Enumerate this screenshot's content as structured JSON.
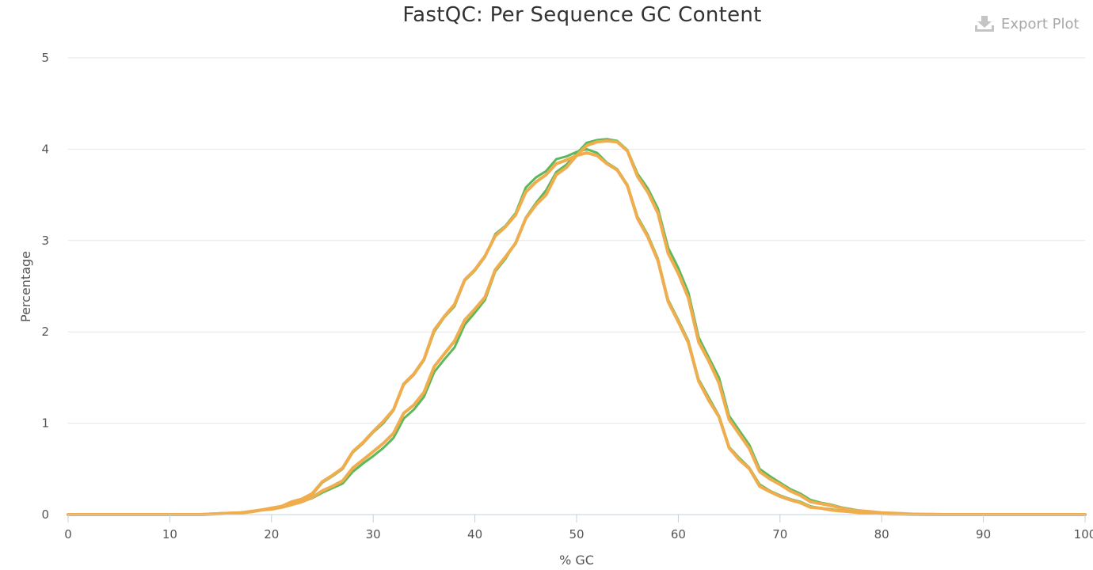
{
  "title": "FastQC: Per Sequence GC Content",
  "toolbar": {
    "export_label": "Export Plot"
  },
  "chart_data": {
    "type": "line",
    "title": "FastQC: Per Sequence GC Content",
    "xlabel": "% GC",
    "ylabel": "Percentage",
    "xlim": [
      0,
      100
    ],
    "ylim": [
      0,
      5
    ],
    "x_ticks": [
      "0",
      "10",
      "20",
      "30",
      "40",
      "50",
      "60",
      "70",
      "80",
      "90",
      "100"
    ],
    "y_ticks": [
      "0",
      "1",
      "2",
      "3",
      "4",
      "5"
    ],
    "grid": true,
    "legend": "none",
    "colors": {
      "green": "#5cb85c",
      "orange": "#f0ad4e"
    },
    "x": [
      0,
      1,
      2,
      3,
      4,
      5,
      6,
      7,
      8,
      9,
      10,
      11,
      12,
      13,
      14,
      15,
      16,
      17,
      18,
      19,
      20,
      21,
      22,
      23,
      24,
      25,
      26,
      27,
      28,
      29,
      30,
      31,
      32,
      33,
      34,
      35,
      36,
      37,
      38,
      39,
      40,
      41,
      42,
      43,
      44,
      45,
      46,
      47,
      48,
      49,
      50,
      51,
      52,
      53,
      54,
      55,
      56,
      57,
      58,
      59,
      60,
      61,
      62,
      63,
      64,
      65,
      66,
      67,
      68,
      69,
      70,
      71,
      72,
      73,
      74,
      75,
      76,
      77,
      78,
      79,
      80,
      81,
      82,
      83,
      84,
      85,
      86,
      87,
      88,
      89,
      90,
      91,
      92,
      93,
      94,
      95,
      96,
      97,
      98,
      99,
      100
    ],
    "series": [
      {
        "color": "#5cb85c",
        "width": 3,
        "values": [
          0,
          0,
          0,
          0,
          0,
          0,
          0,
          0,
          0,
          0,
          0,
          0,
          0,
          0,
          0.005,
          0.01,
          0.015,
          0.02,
          0.03,
          0.05,
          0.06,
          0.08,
          0.11,
          0.14,
          0.18,
          0.24,
          0.29,
          0.34,
          0.47,
          0.56,
          0.64,
          0.73,
          0.84,
          1.05,
          1.15,
          1.29,
          1.56,
          1.7,
          1.83,
          2.08,
          2.21,
          2.35,
          2.66,
          2.8,
          2.98,
          3.25,
          3.41,
          3.55,
          3.75,
          3.83,
          3.95,
          4.07,
          4.1,
          4.11,
          4.09,
          3.99,
          3.73,
          3.57,
          3.35,
          2.92,
          2.7,
          2.43,
          1.94,
          1.72,
          1.5,
          1.08,
          0.92,
          0.76,
          0.5,
          0.42,
          0.35,
          0.28,
          0.23,
          0.16,
          0.13,
          0.11,
          0.08,
          0.06,
          0.04,
          0.03,
          0.02,
          0.015,
          0.01,
          0.005,
          0.003,
          0.002,
          0,
          0,
          0,
          0,
          0,
          0,
          0,
          0,
          0,
          0,
          0,
          0,
          0,
          0,
          0
        ]
      },
      {
        "color": "#5cb85c",
        "width": 3,
        "values": [
          0,
          0,
          0,
          0,
          0,
          0,
          0,
          0,
          0,
          0,
          0,
          0,
          0,
          0,
          0.005,
          0.01,
          0.015,
          0.02,
          0.035,
          0.05,
          0.07,
          0.09,
          0.13,
          0.17,
          0.22,
          0.35,
          0.42,
          0.5,
          0.68,
          0.78,
          0.9,
          1.0,
          1.14,
          1.42,
          1.53,
          1.69,
          2.0,
          2.16,
          2.28,
          2.56,
          2.67,
          2.82,
          3.07,
          3.16,
          3.3,
          3.58,
          3.69,
          3.76,
          3.89,
          3.92,
          3.97,
          4.0,
          3.96,
          3.85,
          3.78,
          3.61,
          3.26,
          3.06,
          2.8,
          2.35,
          2.13,
          1.9,
          1.48,
          1.28,
          1.08,
          0.74,
          0.62,
          0.51,
          0.33,
          0.26,
          0.21,
          0.17,
          0.14,
          0.09,
          0.07,
          0.06,
          0.04,
          0.03,
          0.02,
          0.015,
          0.01,
          0.007,
          0.005,
          0.003,
          0.002,
          0.001,
          0,
          0,
          0,
          0,
          0,
          0,
          0,
          0,
          0,
          0,
          0,
          0,
          0,
          0,
          0
        ]
      },
      {
        "color": "#f0ad4e",
        "width": 4,
        "values": [
          0,
          0,
          0,
          0,
          0,
          0,
          0,
          0,
          0,
          0,
          0,
          0,
          0,
          0,
          0.005,
          0.01,
          0.015,
          0.02,
          0.035,
          0.05,
          0.07,
          0.09,
          0.14,
          0.17,
          0.23,
          0.36,
          0.43,
          0.51,
          0.69,
          0.79,
          0.91,
          1.02,
          1.15,
          1.43,
          1.54,
          1.7,
          2.02,
          2.17,
          2.3,
          2.57,
          2.68,
          2.83,
          3.05,
          3.15,
          3.28,
          3.53,
          3.64,
          3.72,
          3.84,
          3.88,
          3.93,
          3.96,
          3.93,
          3.84,
          3.77,
          3.6,
          3.24,
          3.04,
          2.78,
          2.33,
          2.11,
          1.88,
          1.46,
          1.25,
          1.07,
          0.73,
          0.6,
          0.5,
          0.31,
          0.25,
          0.2,
          0.16,
          0.13,
          0.08,
          0.07,
          0.05,
          0.04,
          0.03,
          0.02,
          0.015,
          0.01,
          0.007,
          0.005,
          0.003,
          0.002,
          0.001,
          0,
          0,
          0,
          0,
          0,
          0,
          0,
          0,
          0,
          0,
          0,
          0,
          0,
          0,
          0
        ]
      },
      {
        "color": "#f0ad4e",
        "width": 4,
        "values": [
          0,
          0,
          0,
          0,
          0,
          0,
          0,
          0,
          0,
          0,
          0,
          0,
          0,
          0,
          0.005,
          0.01,
          0.015,
          0.02,
          0.03,
          0.05,
          0.06,
          0.08,
          0.11,
          0.14,
          0.19,
          0.26,
          0.31,
          0.37,
          0.51,
          0.6,
          0.69,
          0.78,
          0.89,
          1.11,
          1.2,
          1.34,
          1.62,
          1.76,
          1.9,
          2.13,
          2.25,
          2.38,
          2.68,
          2.82,
          2.97,
          3.24,
          3.39,
          3.5,
          3.72,
          3.8,
          3.93,
          4.04,
          4.08,
          4.09,
          4.08,
          3.98,
          3.7,
          3.53,
          3.3,
          2.86,
          2.64,
          2.37,
          1.89,
          1.68,
          1.44,
          1.04,
          0.88,
          0.72,
          0.47,
          0.39,
          0.33,
          0.26,
          0.21,
          0.14,
          0.12,
          0.1,
          0.07,
          0.05,
          0.04,
          0.03,
          0.02,
          0.015,
          0.01,
          0.005,
          0.003,
          0.002,
          0,
          0,
          0,
          0,
          0,
          0,
          0,
          0,
          0,
          0,
          0,
          0,
          0,
          0,
          0
        ]
      }
    ]
  }
}
